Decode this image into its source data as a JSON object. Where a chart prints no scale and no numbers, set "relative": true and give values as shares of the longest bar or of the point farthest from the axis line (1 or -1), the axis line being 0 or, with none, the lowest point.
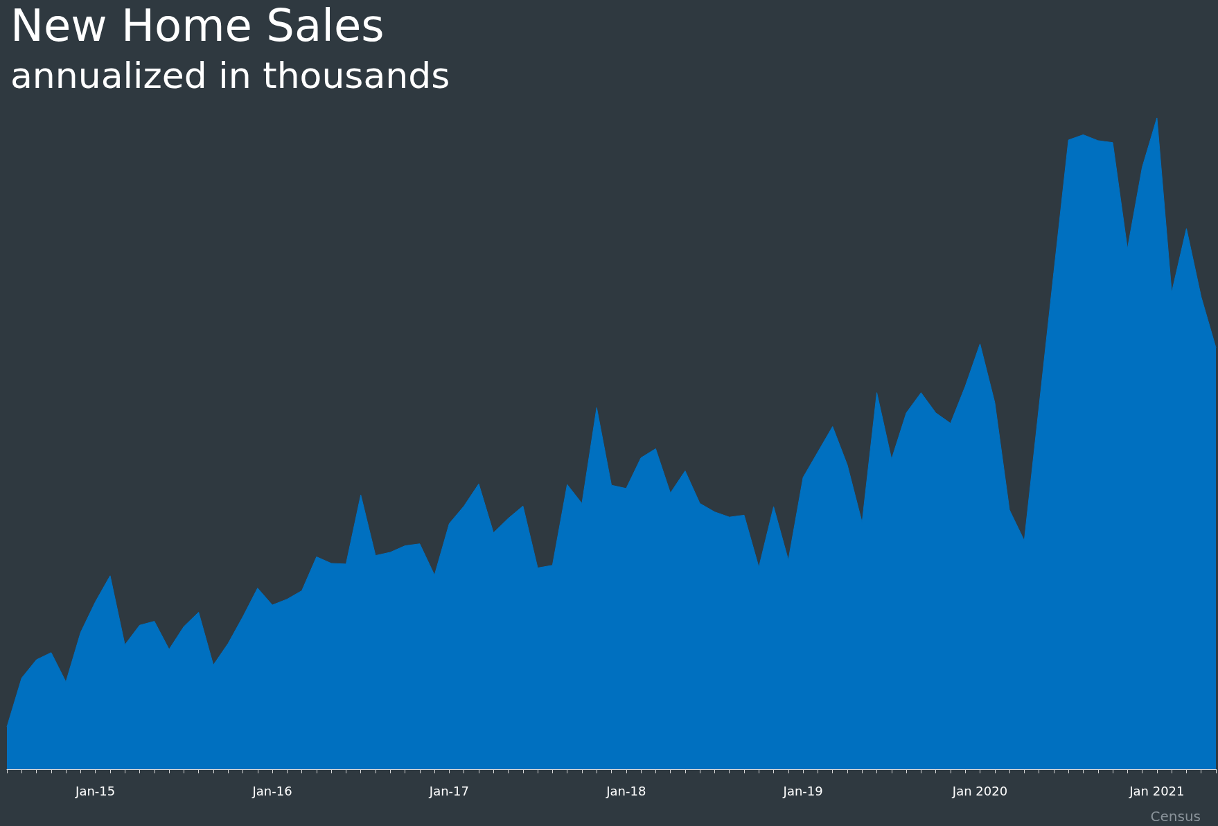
{
  "chart_data": {
    "type": "area",
    "title": "New Home Sales",
    "subtitle": "annualized in thousands",
    "annotations": [
      "Census"
    ],
    "relative": true,
    "grid": false,
    "marker": "none",
    "categories": [
      null,
      null,
      null,
      null,
      null,
      null,
      "Jan-15",
      null,
      null,
      null,
      null,
      null,
      null,
      null,
      null,
      null,
      null,
      null,
      "Jan-16",
      null,
      null,
      null,
      null,
      null,
      null,
      null,
      null,
      null,
      null,
      null,
      "Jan-17",
      null,
      null,
      null,
      null,
      null,
      null,
      null,
      null,
      null,
      null,
      null,
      "Jan-18",
      null,
      null,
      null,
      null,
      null,
      null,
      null,
      null,
      null,
      null,
      null,
      "Jan-19",
      null,
      null,
      null,
      null,
      null,
      null,
      null,
      null,
      null,
      null,
      null,
      "Jan 2020",
      null,
      null,
      null,
      null,
      null,
      null,
      null,
      null,
      null,
      null,
      null,
      "Jan 2021",
      null,
      null,
      null,
      null
    ],
    "series": [
      {
        "color": "#0070c0",
        "values": [
          0.065,
          0.14,
          0.168,
          0.179,
          0.134,
          0.21,
          0.257,
          0.297,
          0.191,
          0.221,
          0.227,
          0.184,
          0.219,
          0.241,
          0.16,
          0.193,
          0.234,
          0.278,
          0.252,
          0.261,
          0.274,
          0.326,
          0.316,
          0.315,
          0.421,
          0.328,
          0.333,
          0.343,
          0.346,
          0.298,
          0.377,
          0.404,
          0.438,
          0.363,
          0.385,
          0.404,
          0.309,
          0.313,
          0.437,
          0.408,
          0.555,
          0.436,
          0.431,
          0.478,
          0.492,
          0.424,
          0.458,
          0.408,
          0.395,
          0.387,
          0.39,
          0.31,
          0.403,
          0.321,
          0.448,
          0.487,
          0.526,
          0.467,
          0.379,
          0.578,
          0.476,
          0.547,
          0.578,
          0.547,
          0.531,
          0.588,
          0.653,
          0.563,
          0.398,
          0.351,
          0.556,
          0.762,
          0.966,
          0.974,
          0.965,
          0.962,
          0.799,
          0.924,
          1,
          0.732,
          0.83,
          0.725,
          0.647
        ]
      }
    ]
  }
}
